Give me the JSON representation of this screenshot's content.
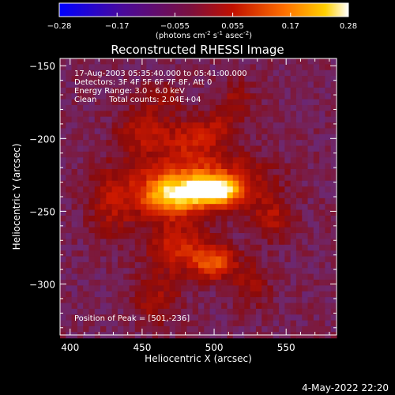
{
  "chart_data": {
    "type": "heatmap",
    "title": "Reconstructed RHESSI Image",
    "xlabel": "Heliocentric X (arcsec)",
    "ylabel": "Heliocentric Y (arcsec)",
    "xlim": [
      393,
      585
    ],
    "ylim": [
      -335,
      -145
    ],
    "x_ticks": [
      400,
      450,
      500,
      550
    ],
    "y_ticks": [
      -150,
      -200,
      -250,
      -300
    ],
    "colorbar": {
      "range": [
        -0.28,
        0.28
      ],
      "ticks": [
        "-0.28",
        "-0.17",
        "-0.055",
        "0.055",
        "0.17",
        "0.28"
      ],
      "label_main": "(photons cm",
      "sup1": "-2",
      "label_mid": " s",
      "sup2": "-1",
      "label_mid2": " asec",
      "sup3": "-2",
      "label_end": ")"
    },
    "annotations": [
      "17-Aug-2003 05:35:40.000 to 05:41:00.000",
      "Detectors: 3F 4F 5F 6F 7F 8F, Att 0",
      "Energy Range: 3.0 - 6.0 keV",
      "Clean     Total counts: 2.04E+04"
    ],
    "peak_label": "Position of Peak = [501,-236]",
    "peak": [
      501,
      -236
    ],
    "sources": [
      {
        "x": 501,
        "y": -236,
        "peak": 0.28,
        "sx": 12,
        "sy": 6
      },
      {
        "x": 470,
        "y": -240,
        "peak": 0.2,
        "sx": 14,
        "sy": 9
      },
      {
        "x": 488,
        "y": -230,
        "peak": 0.17,
        "sx": 30,
        "sy": 14
      },
      {
        "x": 500,
        "y": -285,
        "peak": 0.17,
        "sx": 10,
        "sy": 8
      },
      {
        "x": 475,
        "y": -275,
        "peak": 0.12,
        "sx": 14,
        "sy": 12
      },
      {
        "x": 450,
        "y": -195,
        "peak": 0.09,
        "sx": 12,
        "sy": 12
      },
      {
        "x": 540,
        "y": -255,
        "peak": 0.08,
        "sx": 10,
        "sy": 10
      },
      {
        "x": 480,
        "y": -200,
        "peak": 0.08,
        "sx": 12,
        "sy": 10
      },
      {
        "x": 500,
        "y": -195,
        "peak": 0.07,
        "sx": 10,
        "sy": 9
      },
      {
        "x": 430,
        "y": -245,
        "peak": 0.08,
        "sx": 12,
        "sy": 16
      },
      {
        "x": 460,
        "y": -310,
        "peak": 0.07,
        "sx": 12,
        "sy": 12
      },
      {
        "x": 525,
        "y": -300,
        "peak": 0.06,
        "sx": 10,
        "sy": 12
      },
      {
        "x": 515,
        "y": -175,
        "peak": 0.06,
        "sx": 10,
        "sy": 10
      },
      {
        "x": 465,
        "y": -172,
        "peak": 0.05,
        "sx": 10,
        "sy": 8
      }
    ],
    "background": -0.05,
    "pixel_size_arcsec": 4
  },
  "footer": {
    "date": "4-May-2022 22:20"
  },
  "colors": {
    "background": "#000000",
    "text": "#ffffff",
    "colormap": [
      "#0000ff",
      "#400090",
      "#6a2a80",
      "#8b0000",
      "#d42000",
      "#ff8000",
      "#ffd200",
      "#ffffff"
    ]
  }
}
